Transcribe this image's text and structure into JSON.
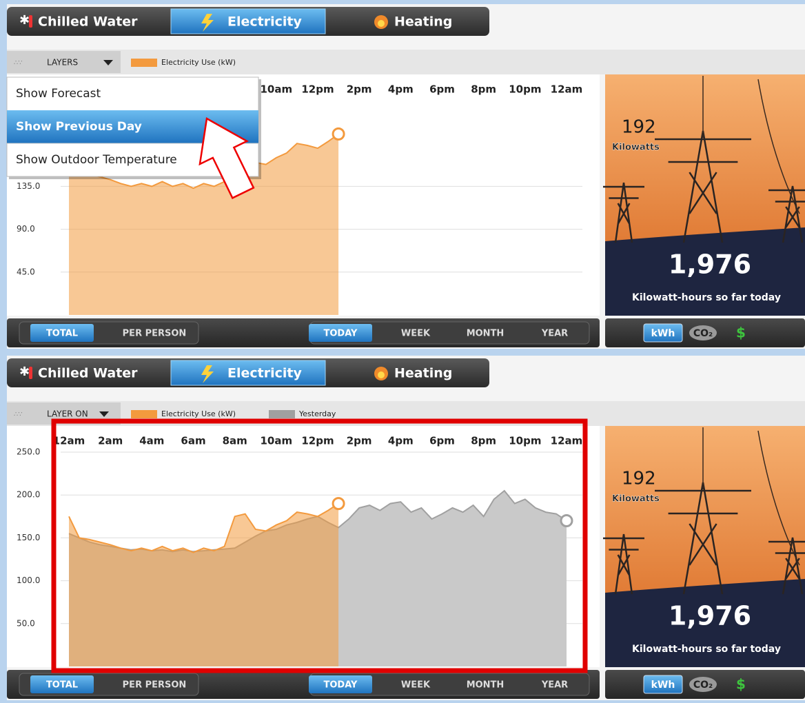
{
  "panels": [
    {
      "tabs": [
        "Chilled Water",
        "Electricity",
        "Heating"
      ],
      "active_tab": 1,
      "layers_button": "LAYERS",
      "menu": {
        "items": [
          "Show Forecast",
          "Show Previous Day",
          "Show Outdoor Temperature"
        ],
        "highlighted": 1
      },
      "chart": {
        "type": "area",
        "xlim": [
          0,
          24
        ],
        "ylim": [
          0,
          225
        ],
        "xticks": [
          {
            "value": 10,
            "label": "10am"
          },
          {
            "value": 12,
            "label": "12pm"
          },
          {
            "value": 14,
            "label": "2pm"
          },
          {
            "value": 16,
            "label": "4pm"
          },
          {
            "value": 18,
            "label": "6pm"
          },
          {
            "value": 20,
            "label": "8pm"
          },
          {
            "value": 22,
            "label": "10pm"
          },
          {
            "value": 24,
            "label": "12am"
          }
        ],
        "yticks": [
          {
            "value": 135,
            "label": "135.0"
          },
          {
            "value": 90,
            "label": "90.0"
          },
          {
            "value": 45,
            "label": "45.0"
          }
        ],
        "grid": true,
        "series": [
          {
            "name": "Electricity Use (kW)",
            "color": "#f39a3e",
            "x": [
              0,
              0.5,
              1,
              1.5,
              2,
              2.5,
              3,
              3.5,
              4,
              4.5,
              5,
              5.5,
              6,
              6.5,
              7,
              7.5,
              8,
              8.5,
              9,
              9.5,
              10,
              10.5,
              11,
              11.5,
              12,
              12.5,
              13
            ],
            "values": [
              175,
              150,
              148,
              145,
              142,
              138,
              135,
              138,
              135,
              140,
              135,
              138,
              133,
              138,
              135,
              140,
              175,
              178,
              160,
              158,
              165,
              170,
              180,
              178,
              175,
              182,
              190
            ]
          }
        ]
      },
      "meter": {
        "power": "192",
        "power_unit": "Kilowatts",
        "energy": "1,976",
        "energy_label": "Kilowatt-hours so far today"
      },
      "view_buttons": [
        "TOTAL",
        "PER PERSON"
      ],
      "period_buttons": [
        "TODAY",
        "WEEK",
        "MONTH",
        "YEAR"
      ],
      "unit_buttons": [
        "kWh",
        "CO₂",
        "$"
      ]
    },
    {
      "tabs": [
        "Chilled Water",
        "Electricity",
        "Heating"
      ],
      "active_tab": 1,
      "layers_button": "LAYER ON",
      "chart": {
        "type": "area",
        "xlim": [
          0,
          24
        ],
        "ylim": [
          0,
          250
        ],
        "xticks": [
          {
            "value": 0,
            "label": "12am"
          },
          {
            "value": 2,
            "label": "2am"
          },
          {
            "value": 4,
            "label": "4am"
          },
          {
            "value": 6,
            "label": "6am"
          },
          {
            "value": 8,
            "label": "8am"
          },
          {
            "value": 10,
            "label": "10am"
          },
          {
            "value": 12,
            "label": "12pm"
          },
          {
            "value": 14,
            "label": "2pm"
          },
          {
            "value": 16,
            "label": "4pm"
          },
          {
            "value": 18,
            "label": "6pm"
          },
          {
            "value": 20,
            "label": "8pm"
          },
          {
            "value": 22,
            "label": "10pm"
          },
          {
            "value": 24,
            "label": "12am"
          }
        ],
        "yticks": [
          {
            "value": 250,
            "label": "250.0"
          },
          {
            "value": 200,
            "label": "200.0"
          },
          {
            "value": 150,
            "label": "150.0"
          },
          {
            "value": 100,
            "label": "100.0"
          },
          {
            "value": 50,
            "label": "50.0"
          }
        ],
        "grid": true,
        "series": [
          {
            "name": "Electricity Use (kW)",
            "color": "#f39a3e",
            "x": [
              0,
              0.5,
              1,
              1.5,
              2,
              2.5,
              3,
              3.5,
              4,
              4.5,
              5,
              5.5,
              6,
              6.5,
              7,
              7.5,
              8,
              8.5,
              9,
              9.5,
              10,
              10.5,
              11,
              11.5,
              12,
              12.5,
              13
            ],
            "values": [
              175,
              150,
              148,
              145,
              142,
              138,
              135,
              138,
              135,
              140,
              135,
              138,
              133,
              138,
              135,
              140,
              175,
              178,
              160,
              158,
              165,
              170,
              180,
              178,
              175,
              182,
              190
            ]
          },
          {
            "name": "Yesterday",
            "color": "#a0a0a0",
            "x": [
              0,
              0.5,
              1,
              1.5,
              2,
              2.5,
              3,
              3.5,
              4,
              4.5,
              5,
              5.5,
              6,
              6.5,
              7,
              7.5,
              8,
              8.5,
              9,
              9.5,
              10,
              10.5,
              11,
              11.5,
              12,
              12.5,
              13,
              13.5,
              14,
              14.5,
              15,
              15.5,
              16,
              16.5,
              17,
              17.5,
              18,
              18.5,
              19,
              19.5,
              20,
              20.5,
              21,
              21.5,
              22,
              22.5,
              23,
              23.5,
              24
            ],
            "values": [
              155,
              150,
              145,
              142,
              140,
              138,
              136,
              137,
              135,
              136,
              134,
              136,
              134,
              135,
              136,
              137,
              138,
              145,
              152,
              158,
              160,
              165,
              168,
              172,
              175,
              168,
              162,
              172,
              185,
              188,
              182,
              190,
              192,
              180,
              185,
              172,
              178,
              185,
              180,
              188,
              175,
              195,
              205,
              190,
              195,
              185,
              180,
              178,
              170
            ]
          }
        ]
      },
      "meter": {
        "power": "192",
        "power_unit": "Kilowatts",
        "energy": "1,976",
        "energy_label": "Kilowatt-hours so far today"
      },
      "view_buttons": [
        "TOTAL",
        "PER PERSON"
      ],
      "period_buttons": [
        "TODAY",
        "WEEK",
        "MONTH",
        "YEAR"
      ],
      "unit_buttons": [
        "kWh",
        "CO₂",
        "$"
      ]
    }
  ]
}
